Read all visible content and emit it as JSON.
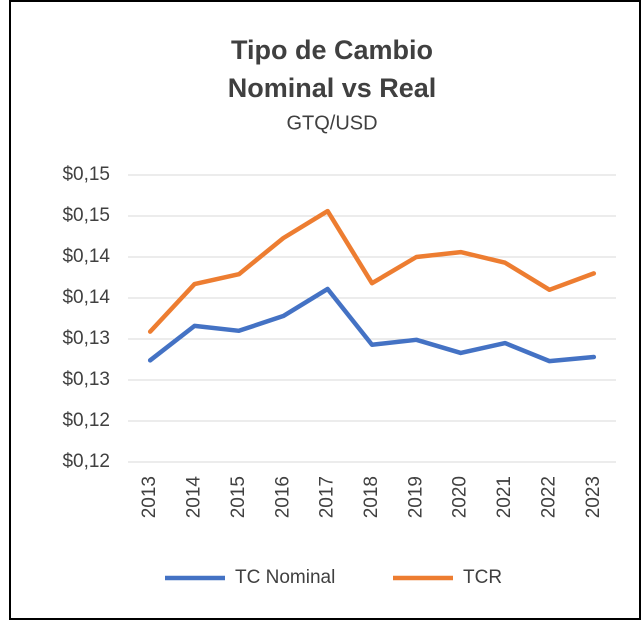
{
  "chart_data": {
    "type": "line",
    "title": [
      "Tipo de Cambio",
      "Nominal vs Real"
    ],
    "subtitle": "GTQ/USD",
    "categories": [
      "2013",
      "2014",
      "2015",
      "2016",
      "2017",
      "2018",
      "2019",
      "2020",
      "2021",
      "2022",
      "2023"
    ],
    "series": [
      {
        "name": "TC Nominal",
        "color": "#4472c4",
        "values": [
          0.1274,
          0.1316,
          0.131,
          0.1328,
          0.1361,
          0.1293,
          0.1299,
          0.1283,
          0.1295,
          0.1273,
          0.1278
        ]
      },
      {
        "name": "TCR",
        "color": "#ed7d31",
        "values": [
          0.1309,
          0.1367,
          0.1379,
          0.1423,
          0.1456,
          0.1368,
          0.14,
          0.1406,
          0.1393,
          0.136,
          0.138
        ]
      }
    ],
    "ylim": [
      0.115,
      0.15
    ],
    "yticks": [
      {
        "value": 0.115,
        "label": "$0,12"
      },
      {
        "value": 0.12,
        "label": "$0,12"
      },
      {
        "value": 0.125,
        "label": "$0,13"
      },
      {
        "value": 0.13,
        "label": "$0,13"
      },
      {
        "value": 0.135,
        "label": "$0,14"
      },
      {
        "value": 0.14,
        "label": "$0,14"
      },
      {
        "value": 0.145,
        "label": "$0,15"
      },
      {
        "value": 0.15,
        "label": "$0,15"
      }
    ],
    "grid": true,
    "legend": "bottom"
  }
}
